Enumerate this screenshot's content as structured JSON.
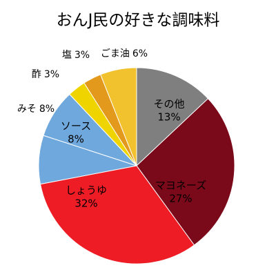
{
  "chart_data": {
    "type": "pie",
    "title": "おんJ民の好きな調味料",
    "categories": [
      "その他",
      "マヨネーズ",
      "しょうゆ",
      "ソース",
      "みそ",
      "酢",
      "塩",
      "ごま油"
    ],
    "values": [
      13,
      27,
      32,
      8,
      8,
      3,
      3,
      6
    ],
    "value_labels": [
      "13%",
      "27%",
      "32%",
      "8%",
      "8%",
      "3%",
      "3%",
      "6%"
    ],
    "colors": [
      "#7f7f7f",
      "#7a0a1a",
      "#ee1c25",
      "#6fa8dc",
      "#6fa8dc",
      "#f0d400",
      "#e39a1c",
      "#f2c12e"
    ]
  }
}
